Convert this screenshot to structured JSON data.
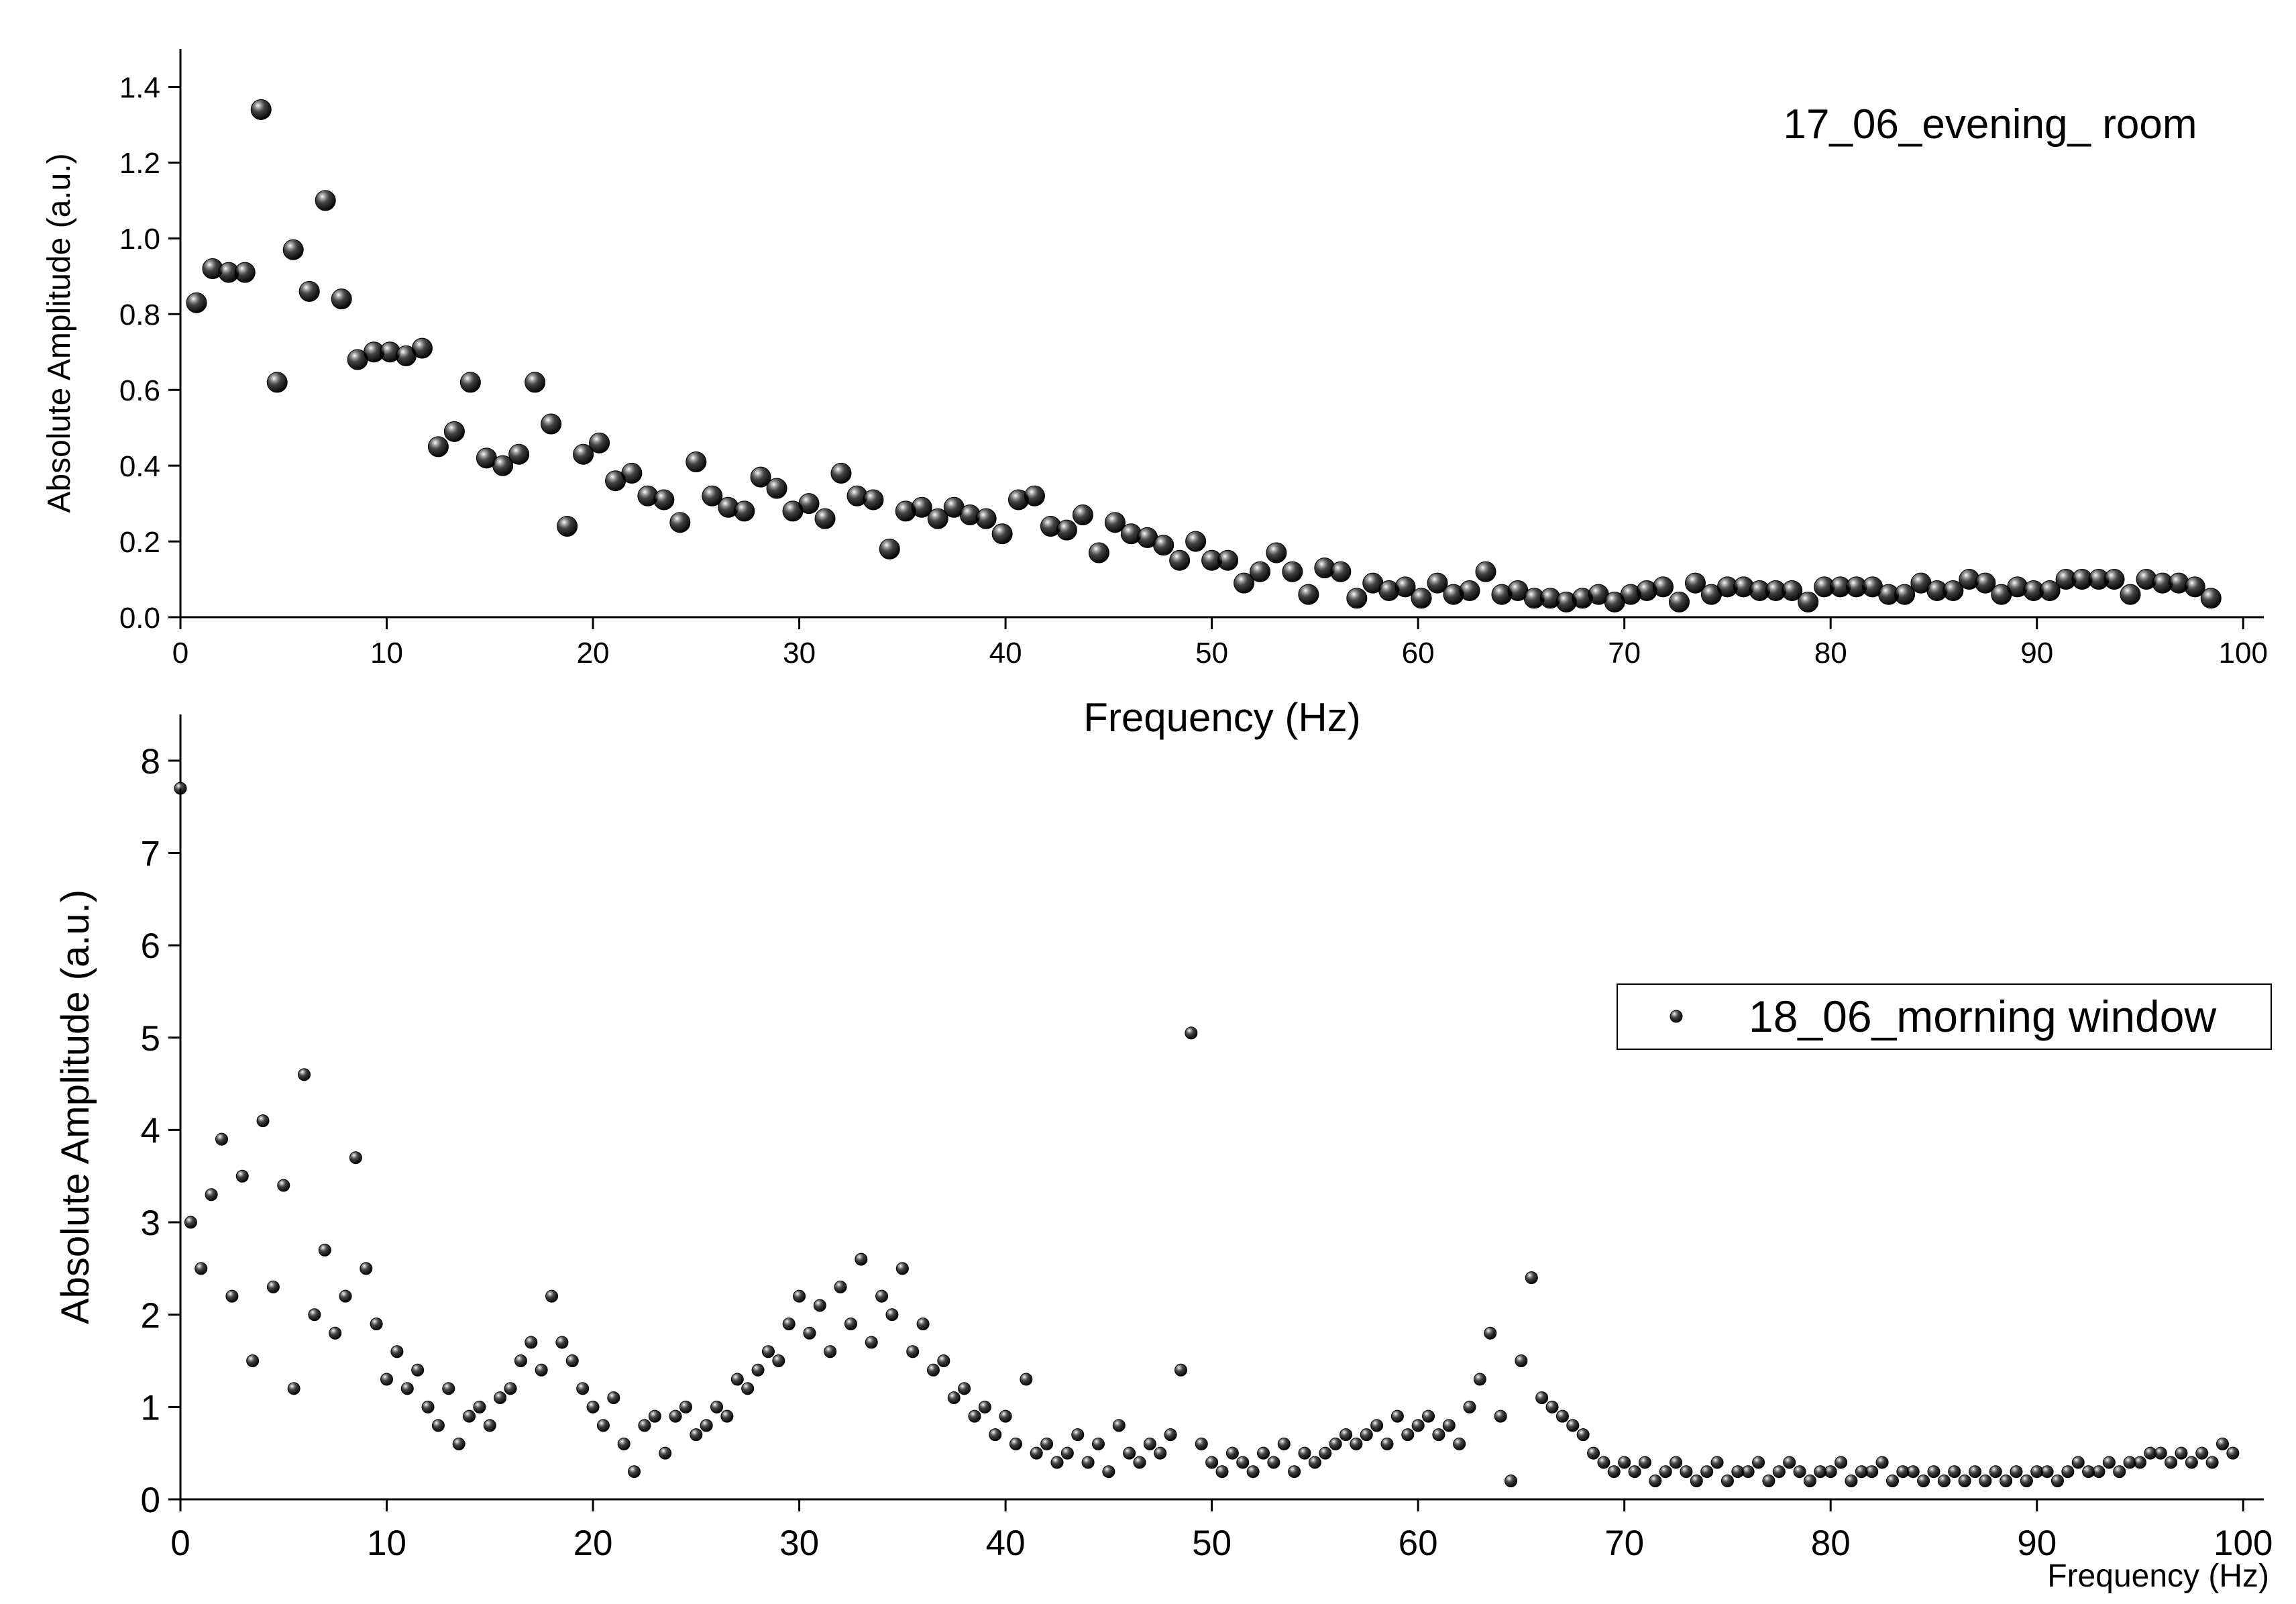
{
  "chart_data": [
    {
      "type": "scatter",
      "xlabel": "Frequency (Hz)",
      "ylabel": "Absolute Amplitude (a.u.)",
      "annotation": "17_06_evening_ room",
      "xlim": [
        0,
        101
      ],
      "ylim": [
        0,
        1.5
      ],
      "xticks": [
        0,
        10,
        20,
        30,
        40,
        50,
        60,
        70,
        80,
        90,
        100
      ],
      "yticks": [
        {
          "value": 0,
          "label": "0.0"
        },
        {
          "value": 0.2,
          "label": "0.2"
        },
        {
          "value": 0.4,
          "label": "0.4"
        },
        {
          "value": 0.6,
          "label": "0.6"
        },
        {
          "value": 0.8,
          "label": "0.8"
        },
        {
          "value": 1.0,
          "label": "1.0"
        },
        {
          "value": 1.2,
          "label": "1.2"
        },
        {
          "value": 1.4,
          "label": "1.4"
        }
      ],
      "x": [
        0.78,
        1.56,
        2.34,
        3.13,
        3.91,
        4.69,
        5.47,
        6.25,
        7.03,
        7.81,
        8.59,
        9.38,
        10.16,
        10.94,
        11.72,
        12.5,
        13.28,
        14.06,
        14.84,
        15.63,
        16.41,
        17.19,
        17.97,
        18.75,
        19.53,
        20.31,
        21.09,
        21.88,
        22.66,
        23.44,
        24.22,
        25.0,
        25.78,
        26.56,
        27.34,
        28.13,
        28.91,
        29.69,
        30.47,
        31.25,
        32.03,
        32.81,
        33.59,
        34.38,
        35.16,
        35.94,
        36.72,
        37.5,
        38.28,
        39.06,
        39.84,
        40.63,
        41.41,
        42.19,
        42.97,
        43.75,
        44.53,
        45.31,
        46.09,
        46.88,
        47.66,
        48.44,
        49.22,
        50.0,
        50.78,
        51.56,
        52.34,
        53.13,
        53.91,
        54.69,
        55.47,
        56.25,
        57.03,
        57.81,
        58.59,
        59.38,
        60.16,
        60.94,
        61.72,
        62.5,
        63.28,
        64.06,
        64.84,
        65.63,
        66.41,
        67.19,
        67.97,
        68.75,
        69.53,
        70.31,
        71.09,
        71.88,
        72.66,
        73.44,
        74.22,
        75.0,
        75.78,
        76.56,
        77.34,
        78.13,
        78.91,
        79.69,
        80.47,
        81.25,
        82.03,
        82.81,
        83.59,
        84.38,
        85.16,
        85.94,
        86.72,
        87.5,
        88.28,
        89.06,
        89.84,
        90.63,
        91.41,
        92.19,
        93.0,
        93.75,
        94.53,
        95.31,
        96.09,
        96.88,
        97.66,
        98.44
      ],
      "series": [
        {
          "color": "#000000",
          "values": [
            0.83,
            0.92,
            0.91,
            0.91,
            1.34,
            0.62,
            0.97,
            0.86,
            1.1,
            0.84,
            0.68,
            0.7,
            0.7,
            0.69,
            0.71,
            0.45,
            0.49,
            0.62,
            0.42,
            0.4,
            0.43,
            0.62,
            0.51,
            0.24,
            0.43,
            0.46,
            0.36,
            0.38,
            0.32,
            0.31,
            0.25,
            0.41,
            0.32,
            0.29,
            0.28,
            0.37,
            0.34,
            0.28,
            0.3,
            0.26,
            0.38,
            0.32,
            0.31,
            0.18,
            0.28,
            0.29,
            0.26,
            0.29,
            0.27,
            0.26,
            0.22,
            0.31,
            0.32,
            0.24,
            0.23,
            0.27,
            0.17,
            0.25,
            0.22,
            0.21,
            0.19,
            0.15,
            0.2,
            0.15,
            0.15,
            0.09,
            0.12,
            0.17,
            0.12,
            0.06,
            0.13,
            0.12,
            0.05,
            0.09,
            0.07,
            0.08,
            0.05,
            0.09,
            0.06,
            0.07,
            0.12,
            0.06,
            0.07,
            0.05,
            0.05,
            0.04,
            0.05,
            0.06,
            0.04,
            0.06,
            0.07,
            0.08,
            0.04,
            0.09,
            0.06,
            0.08,
            0.08,
            0.07,
            0.07,
            0.07,
            0.04,
            0.08,
            0.08,
            0.08,
            0.08,
            0.06,
            0.06,
            0.09,
            0.07,
            0.07,
            0.1,
            0.09,
            0.06,
            0.08,
            0.07,
            0.07,
            0.1,
            0.1,
            0.1,
            0.1,
            0.06,
            0.1,
            0.09,
            0.09,
            0.08,
            0.05
          ]
        }
      ]
    },
    {
      "type": "scatter",
      "xlabel": "Frequency (Hz)",
      "ylabel": "Absolute Amplitude (a.u.)",
      "legend": "upper right",
      "xlim": [
        0,
        101
      ],
      "ylim": [
        0,
        8.5
      ],
      "xticks": [
        0,
        10,
        20,
        30,
        40,
        50,
        60,
        70,
        80,
        90,
        100
      ],
      "yticks": [
        0,
        1,
        2,
        3,
        4,
        5,
        6,
        7,
        8
      ],
      "x": [
        0,
        0.5,
        1,
        1.5,
        2,
        2.5,
        3,
        3.5,
        4,
        4.5,
        5,
        5.5,
        6,
        6.5,
        7,
        7.5,
        8,
        8.5,
        9,
        9.5,
        10,
        10.5,
        11,
        11.5,
        12,
        12.5,
        13,
        13.5,
        14,
        14.5,
        15,
        15.5,
        16,
        16.5,
        17,
        17.5,
        18,
        18.5,
        19,
        19.5,
        20,
        20.5,
        21,
        21.5,
        22,
        22.5,
        23,
        23.5,
        24,
        24.5,
        25,
        25.5,
        26,
        26.5,
        27,
        27.5,
        28,
        28.5,
        29,
        29.5,
        30,
        30.5,
        31,
        31.5,
        32,
        32.5,
        33,
        33.5,
        34,
        34.5,
        35,
        35.5,
        36,
        36.5,
        37,
        37.5,
        38,
        38.5,
        39,
        39.5,
        40,
        40.5,
        41,
        41.5,
        42,
        42.5,
        43,
        43.5,
        44,
        44.5,
        45,
        45.5,
        46,
        46.5,
        47,
        47.5,
        48,
        48.5,
        49,
        49.5,
        50,
        50.5,
        51,
        51.5,
        52,
        52.5,
        53,
        53.5,
        54,
        54.5,
        55,
        55.5,
        56,
        56.5,
        57,
        57.5,
        58,
        58.5,
        59,
        59.5,
        60,
        60.5,
        61,
        61.5,
        62,
        62.5,
        63,
        63.5,
        64,
        64.5,
        65,
        65.5,
        66,
        66.5,
        67,
        67.5,
        68,
        68.5,
        69,
        69.5,
        70,
        70.5,
        71,
        71.5,
        72,
        72.5,
        73,
        73.5,
        74,
        74.5,
        75,
        75.5,
        76,
        76.5,
        77,
        77.5,
        78,
        78.5,
        79,
        79.5,
        80,
        80.5,
        81,
        81.5,
        82,
        82.5,
        83,
        83.5,
        84,
        84.5,
        85,
        85.5,
        86,
        86.5,
        87,
        87.5,
        88,
        88.5,
        89,
        89.5,
        90,
        90.5,
        91,
        91.5,
        92,
        92.5,
        93,
        93.5,
        94,
        94.5,
        95,
        95.5,
        96,
        96.5,
        97,
        97.5,
        98,
        98.5,
        99,
        99.5
      ],
      "series": [
        {
          "name": "18_06_morning window",
          "color": "#000000",
          "values": [
            7.7,
            3.0,
            2.5,
            3.3,
            3.9,
            2.2,
            3.5,
            1.5,
            4.1,
            2.3,
            3.4,
            1.2,
            4.6,
            2.0,
            2.7,
            1.8,
            2.2,
            3.7,
            2.5,
            1.9,
            1.3,
            1.6,
            1.2,
            1.4,
            1.0,
            0.8,
            1.2,
            0.6,
            0.9,
            1.0,
            0.8,
            1.1,
            1.2,
            1.5,
            1.7,
            1.4,
            2.2,
            1.7,
            1.5,
            1.2,
            1.0,
            0.8,
            1.1,
            0.6,
            0.3,
            0.8,
            0.9,
            0.5,
            0.9,
            1.0,
            0.7,
            0.8,
            1.0,
            0.9,
            1.3,
            1.2,
            1.4,
            1.6,
            1.5,
            1.9,
            2.2,
            1.8,
            2.1,
            1.6,
            2.3,
            1.9,
            2.6,
            1.7,
            2.2,
            2.0,
            2.5,
            1.6,
            1.9,
            1.4,
            1.5,
            1.1,
            1.2,
            0.9,
            1.0,
            0.7,
            0.9,
            0.6,
            1.3,
            0.5,
            0.6,
            0.4,
            0.5,
            0.7,
            0.4,
            0.6,
            0.3,
            0.8,
            0.5,
            0.4,
            0.6,
            0.5,
            0.7,
            1.4,
            5.05,
            0.6,
            0.4,
            0.3,
            0.5,
            0.4,
            0.3,
            0.5,
            0.4,
            0.6,
            0.3,
            0.5,
            0.4,
            0.5,
            0.6,
            0.7,
            0.6,
            0.7,
            0.8,
            0.6,
            0.9,
            0.7,
            0.8,
            0.9,
            0.7,
            0.8,
            0.6,
            1.0,
            1.3,
            1.8,
            0.9,
            0.2,
            1.5,
            2.4,
            1.1,
            1.0,
            0.9,
            0.8,
            0.7,
            0.5,
            0.4,
            0.3,
            0.4,
            0.3,
            0.4,
            0.2,
            0.3,
            0.4,
            0.3,
            0.2,
            0.3,
            0.4,
            0.2,
            0.3,
            0.3,
            0.4,
            0.2,
            0.3,
            0.4,
            0.3,
            0.2,
            0.3,
            0.3,
            0.4,
            0.2,
            0.3,
            0.3,
            0.4,
            0.2,
            0.3,
            0.3,
            0.2,
            0.3,
            0.2,
            0.3,
            0.2,
            0.3,
            0.2,
            0.3,
            0.2,
            0.3,
            0.2,
            0.3,
            0.3,
            0.2,
            0.3,
            0.4,
            0.3,
            0.3,
            0.4,
            0.3,
            0.4,
            0.4,
            0.5,
            0.5,
            0.4,
            0.5,
            0.4,
            0.5,
            0.4,
            0.6,
            0.5
          ]
        }
      ]
    }
  ]
}
